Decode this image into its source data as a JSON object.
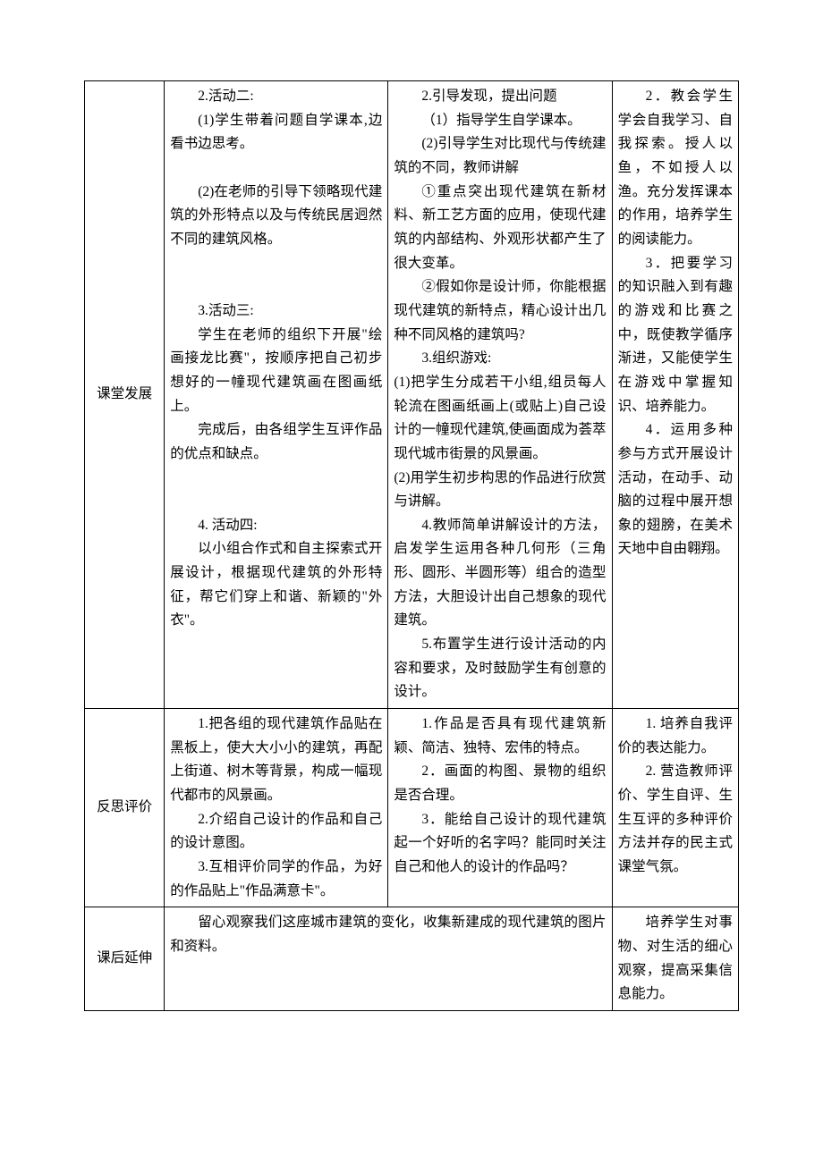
{
  "rows": [
    {
      "label": "课堂发展",
      "colA": [
        "2.活动二:",
        "(1)学生带着问题自学课本,边看书边思考。",
        "",
        "(2)在老师的引导下领略现代建筑的外形特点以及与传统民居迥然不同的建筑风格。",
        "",
        "",
        "3.活动三:",
        "学生在老师的组织下开展\"绘画接龙比赛\"，按顺序把自己初步想好的一幢现代建筑画在图画纸上。",
        "完成后，由各组学生互评作品的优点和缺点。",
        "",
        "",
        "4. 活动四:",
        "以小组合作式和自主探索式开展设计，根据现代建筑的外形特征，帮它们穿上和谐、新颖的\"外衣\"。"
      ],
      "colB": [
        "2.引导发现，提出问题",
        "（1）指导学生自学课本。",
        "(2)引导学生对比现代与传统建筑的不同，教师讲解",
        "①重点突出现代建筑在新材料、新工艺方面的应用，使现代建筑的内部结构、外观形状都产生了很大变革。",
        "②假如你是设计师，你能根据现代建筑的新特点，精心设计出几种不同风格的建筑吗?",
        "3.组织游戏:",
        "(1)把学生分成若干小组,组员每人轮流在图画纸画上(或贴上)自己设计的一幢现代建筑,使画面成为荟萃现代城市街景的风景画。",
        "(2)用学生初步构思的作品进行欣赏与讲解。",
        "4.教师简单讲解设计的方法，启发学生运用各种几何形（三角形、圆形、半圆形等）组合的造型方法，大胆设计出自己想象的现代建筑。",
        "5.布置学生进行设计活动的内容和要求，及时鼓励学生有创意的设计。"
      ],
      "colC": [
        "2．教会学生学会自我学习、自我探索。授人以鱼，不如授人以渔。充分发挥课本的作用，培养学生的阅读能力。",
        "3．把要学习的知识融入到有趣的游戏和比赛之中，既使教学循序渐进，又能使学生在游戏中掌握知识、培养能力。",
        "4．运用多种参与方式开展设计活动，在动手、动脑的过程中展开想象的翅膀，在美术天地中自由翱翔。"
      ]
    },
    {
      "label": "反思评价",
      "colA": [
        "1.把各组的现代建筑作品贴在黑板上，使大大小小的建筑，再配上街道、树木等背景，构成一幅现代都市的风景画。",
        "2.介绍自己设计的作品和自己的设计意图。",
        "3.互相评价同学的作品，为好的作品贴上\"作品满意卡\"。"
      ],
      "colB": [
        "1.作品是否具有现代建筑新颖、简洁、独特、宏伟的特点。",
        "2．画面的构图、景物的组织是否合理。",
        "3．能给自己设计的现代建筑起一个好听的名字吗？能同时关注自己和他人的设计的作品吗？"
      ],
      "colC": [
        "1. 培养自我评价的表达能力。",
        "2. 营造教师评价、学生自评、生生互评的多种评价方法并存的民主式课堂气氛。"
      ]
    },
    {
      "label": "课后延伸",
      "homework": "留心观察我们这座城市建筑的变化，收集新建成的现代建筑的图片和资料。",
      "colC": [
        "培养学生对事物、对生活的细心观察，提高采集信息能力。"
      ]
    }
  ]
}
